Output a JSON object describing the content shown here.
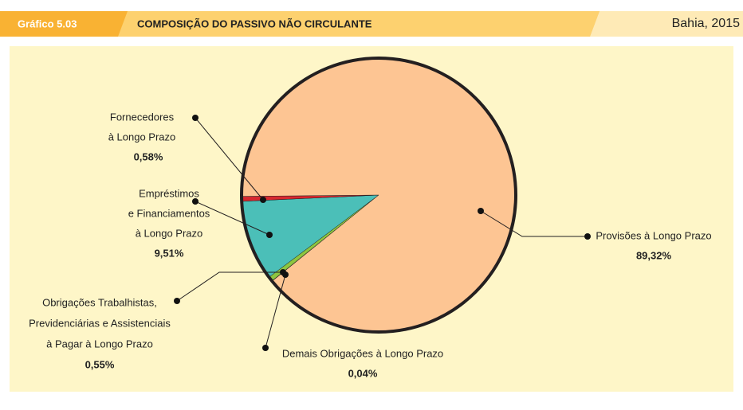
{
  "chart_data": {
    "type": "pie",
    "figure_label": "Gráfico 5.03",
    "title": "COMPOSIÇÃO DO PASSIVO NÃO CIRCULANTE",
    "subtitle": "Bahia, 2015",
    "categories": [
      [
        "Demais Obrigações à Longo Prazo"
      ],
      [
        "Obrigações Trabalhistas,",
        "Previdenciárias e Assistenciais",
        "à Pagar à Longo Prazo"
      ],
      [
        "Empréstimos",
        "e Financiamentos",
        "à Longo Prazo"
      ],
      [
        "Fornecedores",
        "à Longo Prazo"
      ],
      [
        "Provisões à Longo Prazo"
      ]
    ],
    "values": [
      0.04,
      0.55,
      9.51,
      0.58,
      89.32
    ],
    "value_labels": [
      "0,04%",
      "0,55%",
      "9,51%",
      "0,58%",
      "89,32%"
    ],
    "colors": [
      "#6d8f3a",
      "#8dc63f",
      "#4bbfb8",
      "#d7282f",
      "#fdc593"
    ]
  }
}
